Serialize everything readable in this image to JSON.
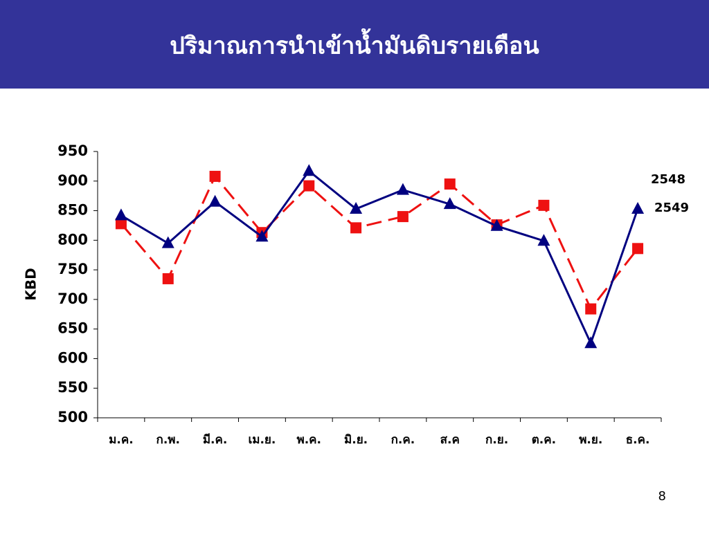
{
  "chart_data": {
    "type": "line",
    "title": "ปริมาณการนำเข้าน้ำมันดิบรายเดือน",
    "y_label": "KBD",
    "categories": [
      "ม.ค.",
      "ก.พ.",
      "มี.ค.",
      "เม.ย.",
      "พ.ค.",
      "มิ.ย.",
      "ก.ค.",
      "ส.ค",
      "ก.ย.",
      "ต.ค.",
      "พ.ย.",
      "ธ.ค."
    ],
    "series": [
      {
        "name": "2548",
        "color": "#ee1111",
        "values": [
          828,
          735,
          908,
          813,
          892,
          821,
          840,
          895,
          826,
          859,
          684,
          786
        ]
      },
      {
        "name": "2549",
        "color": "#000080",
        "values": [
          842,
          795,
          865,
          806,
          917,
          853,
          885,
          861,
          824,
          799,
          626,
          853
        ]
      }
    ],
    "ylim": [
      500,
      950
    ],
    "yticks": [
      500,
      550,
      600,
      650,
      700,
      750,
      800,
      850,
      900,
      950
    ]
  },
  "page_number": "8"
}
